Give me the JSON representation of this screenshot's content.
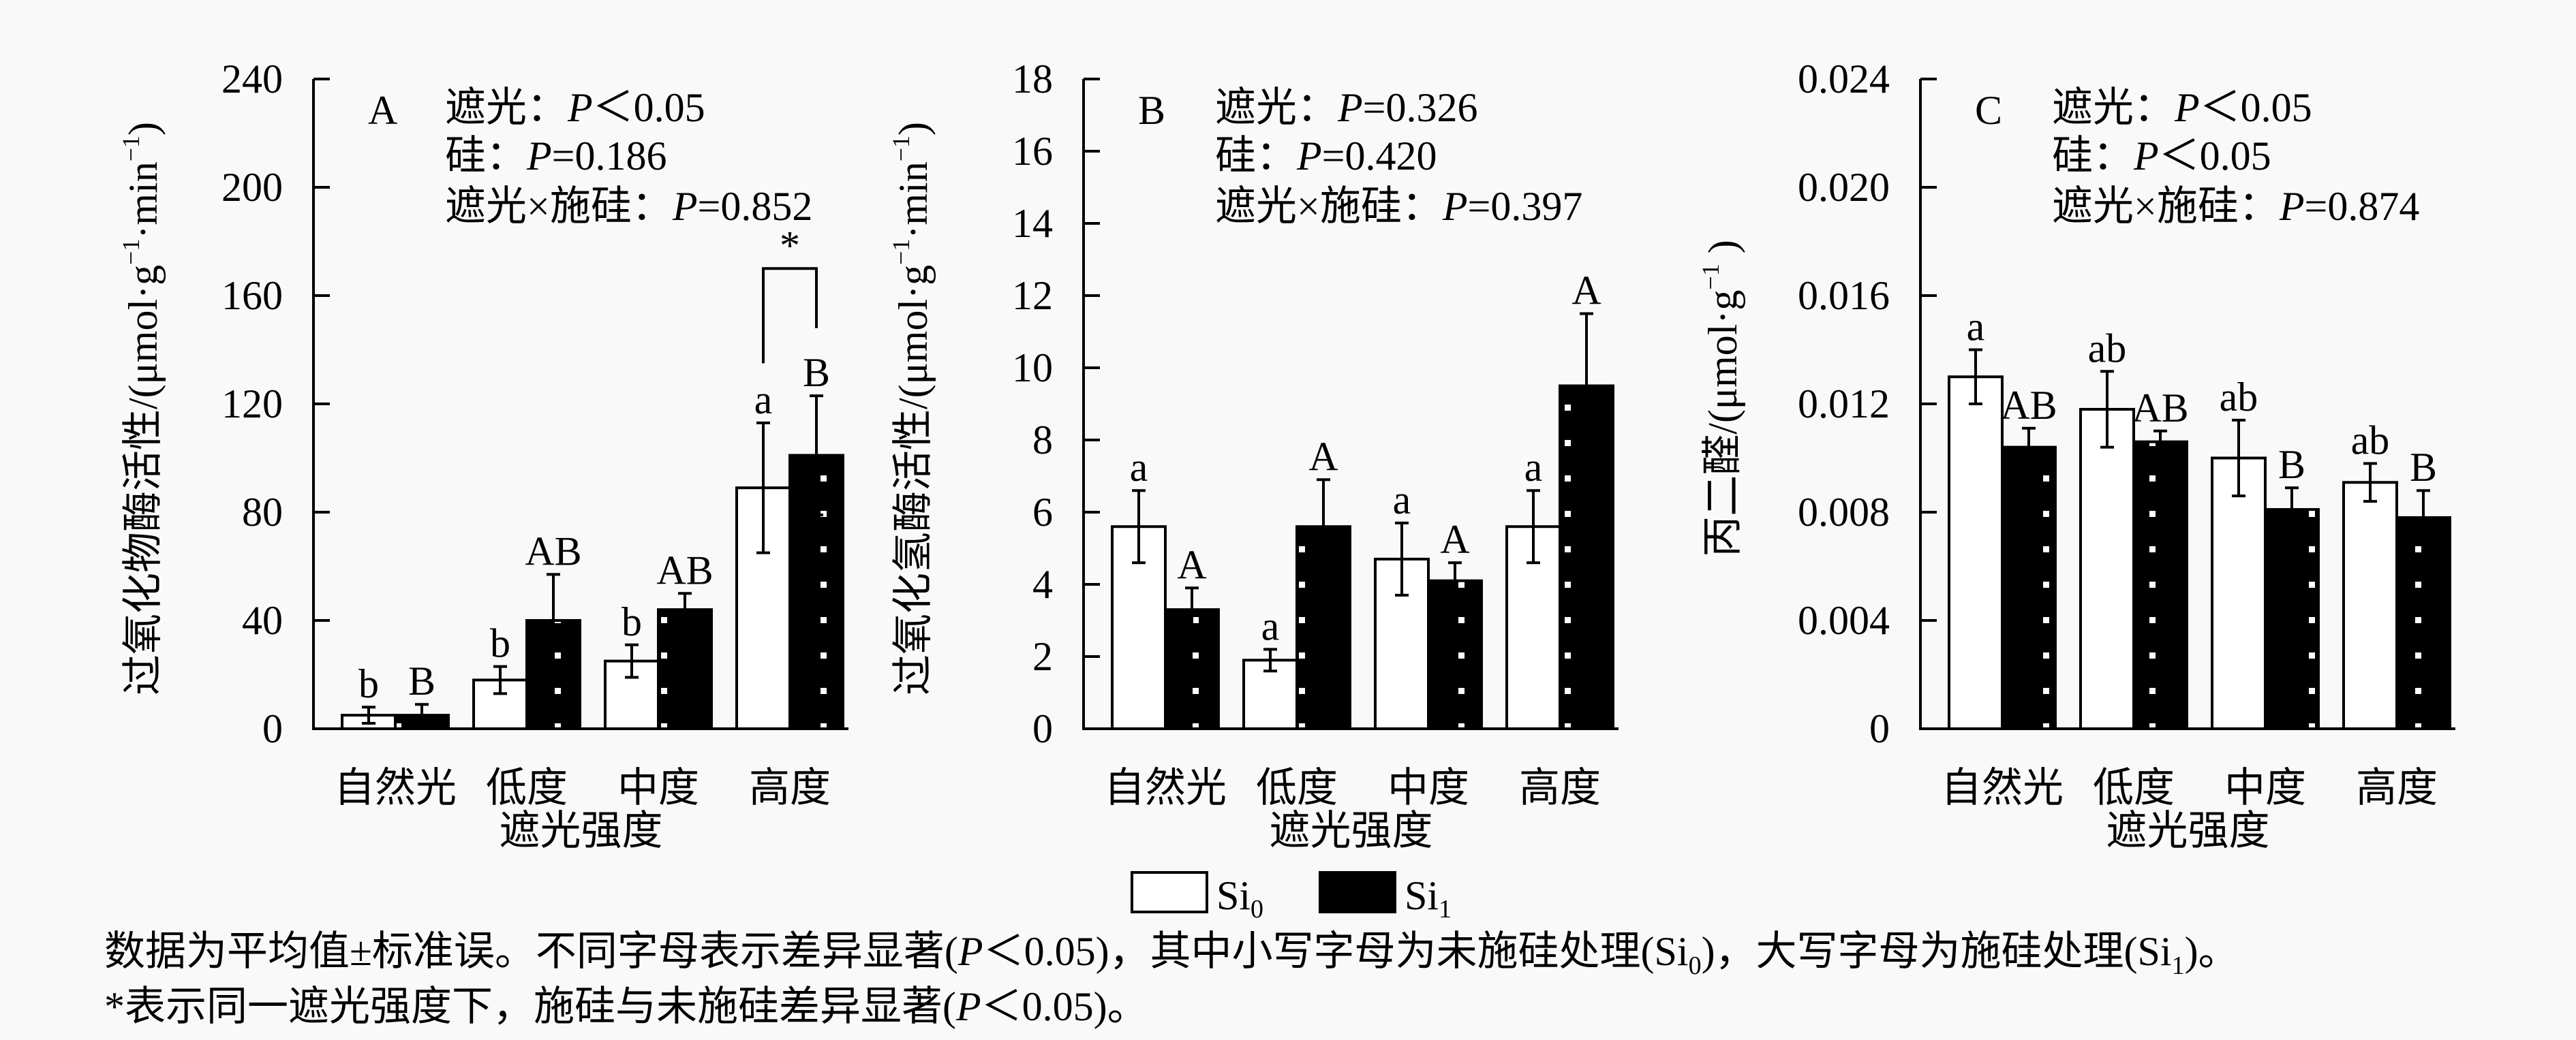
{
  "chart_data": [
    {
      "type": "bar",
      "panel_label": "A",
      "title": "",
      "ylabel_segments": [
        {
          "t": "过氧化物酶活性/(μmol·g"
        },
        {
          "t": "−1",
          "sup": true
        },
        {
          "t": "·min"
        },
        {
          "t": "−1",
          "sup": true
        },
        {
          "t": ")"
        }
      ],
      "xlabel": "遮光强度",
      "categories": [
        "自然光",
        "低度",
        "中度",
        "高度"
      ],
      "ylim": [
        0,
        240
      ],
      "yticks": [
        0,
        40,
        80,
        120,
        160,
        200,
        240
      ],
      "ytick_labels": [
        "0",
        "40",
        "80",
        "120",
        "160",
        "200",
        "240"
      ],
      "stats": [
        [
          {
            "t": "遮光："
          },
          {
            "t": "P",
            "i": true
          },
          {
            "t": "＜0.05"
          }
        ],
        [
          {
            "t": "硅："
          },
          {
            "t": "P",
            "i": true
          },
          {
            "t": "=0.186"
          }
        ],
        [
          {
            "t": "遮光×施硅："
          },
          {
            "t": "P",
            "i": true
          },
          {
            "t": "=0.852"
          }
        ]
      ],
      "series": [
        {
          "name": "Si0",
          "values": [
            5,
            18,
            25,
            89
          ],
          "errors": [
            3,
            5,
            6,
            24
          ],
          "letters": [
            "b",
            "b",
            "b",
            "a"
          ]
        },
        {
          "name": "Si1",
          "values": [
            5,
            40,
            44,
            101
          ],
          "errors": [
            4,
            17,
            6,
            22
          ],
          "letters": [
            "B",
            "AB",
            "AB",
            "B"
          ]
        }
      ],
      "significance": {
        "category_index": 3,
        "mark": "*",
        "bracket_top": 170,
        "left_bottom": 135,
        "right_bottom": 148
      }
    },
    {
      "type": "bar",
      "panel_label": "B",
      "title": "",
      "ylabel_segments": [
        {
          "t": "过氧化氢酶活性/(μmol·g"
        },
        {
          "t": "−1",
          "sup": true
        },
        {
          "t": "·min"
        },
        {
          "t": "−1",
          "sup": true
        },
        {
          "t": ")"
        }
      ],
      "xlabel": "遮光强度",
      "categories": [
        "自然光",
        "低度",
        "中度",
        "高度"
      ],
      "ylim": [
        0,
        18
      ],
      "yticks": [
        0,
        2,
        4,
        6,
        8,
        10,
        12,
        14,
        16,
        18
      ],
      "ytick_labels": [
        "0",
        "2",
        "4",
        "6",
        "8",
        "10",
        "12",
        "14",
        "16",
        "18"
      ],
      "stats": [
        [
          {
            "t": "遮光："
          },
          {
            "t": "P",
            "i": true
          },
          {
            "t": "=0.326"
          }
        ],
        [
          {
            "t": "硅："
          },
          {
            "t": "P",
            "i": true
          },
          {
            "t": "=0.420"
          }
        ],
        [
          {
            "t": "遮光×施硅："
          },
          {
            "t": "P",
            "i": true
          },
          {
            "t": "=0.397"
          }
        ]
      ],
      "series": [
        {
          "name": "Si0",
          "values": [
            5.6,
            1.9,
            4.7,
            5.6
          ],
          "errors": [
            1.0,
            0.3,
            1.0,
            1.0
          ],
          "letters": [
            "a",
            "a",
            "a",
            "a"
          ]
        },
        {
          "name": "Si1",
          "values": [
            3.3,
            5.6,
            4.1,
            9.5
          ],
          "errors": [
            0.6,
            1.3,
            0.5,
            2.0
          ],
          "letters": [
            "A",
            "A",
            "A",
            "A"
          ]
        }
      ]
    },
    {
      "type": "bar",
      "panel_label": "C",
      "title": "",
      "ylabel_segments": [
        {
          "t": "丙二醛/(μmol·g"
        },
        {
          "t": "−1",
          "sup": true
        },
        {
          "t": " )"
        }
      ],
      "xlabel": "遮光强度",
      "categories": [
        "自然光",
        "低度",
        "中度",
        "高度"
      ],
      "ylim": [
        0,
        0.024
      ],
      "yticks": [
        0,
        0.004,
        0.008,
        0.012,
        0.016,
        0.02,
        0.024
      ],
      "ytick_labels": [
        "0",
        "0.004",
        "0.008",
        "0.012",
        "0.016",
        "0.020",
        "0.024"
      ],
      "stats": [
        [
          {
            "t": "遮光："
          },
          {
            "t": "P",
            "i": true
          },
          {
            "t": "＜0.05"
          }
        ],
        [
          {
            "t": "硅："
          },
          {
            "t": "P",
            "i": true
          },
          {
            "t": "＜0.05"
          }
        ],
        [
          {
            "t": "遮光×施硅："
          },
          {
            "t": "P",
            "i": true
          },
          {
            "t": "=0.874"
          }
        ]
      ],
      "series": [
        {
          "name": "Si0",
          "values": [
            0.013,
            0.0118,
            0.01,
            0.0091
          ],
          "errors": [
            0.001,
            0.0014,
            0.0014,
            0.0007
          ],
          "letters": [
            "a",
            "ab",
            "ab",
            "ab"
          ]
        },
        {
          "name": "Si1",
          "values": [
            0.0104,
            0.0106,
            0.0081,
            0.0078
          ],
          "errors": [
            0.0007,
            0.0004,
            0.0008,
            0.001
          ],
          "letters": [
            "AB",
            "AB",
            "B",
            "B"
          ]
        }
      ]
    }
  ],
  "legend": [
    {
      "base": "Si",
      "sub": "0",
      "fill": "#ffffff"
    },
    {
      "base": "Si",
      "sub": "1",
      "fill": "#000000"
    }
  ],
  "caption": {
    "line1": [
      {
        "t": "数据为平均值±标准误。不同字母表示差异显著("
      },
      {
        "t": "P",
        "i": true
      },
      {
        "t": "＜0.05)，其中小写字母为未施硅处理(Si"
      },
      {
        "t": "0",
        "sub": true
      },
      {
        "t": ")，大写字母为施硅处理(Si"
      },
      {
        "t": "1",
        "sub": true
      },
      {
        "t": ")。"
      }
    ],
    "line2": [
      {
        "t": "*表示同一遮光强度下，施硅与未施硅差异显著("
      },
      {
        "t": "P",
        "i": true
      },
      {
        "t": "＜0.05)。"
      }
    ]
  }
}
